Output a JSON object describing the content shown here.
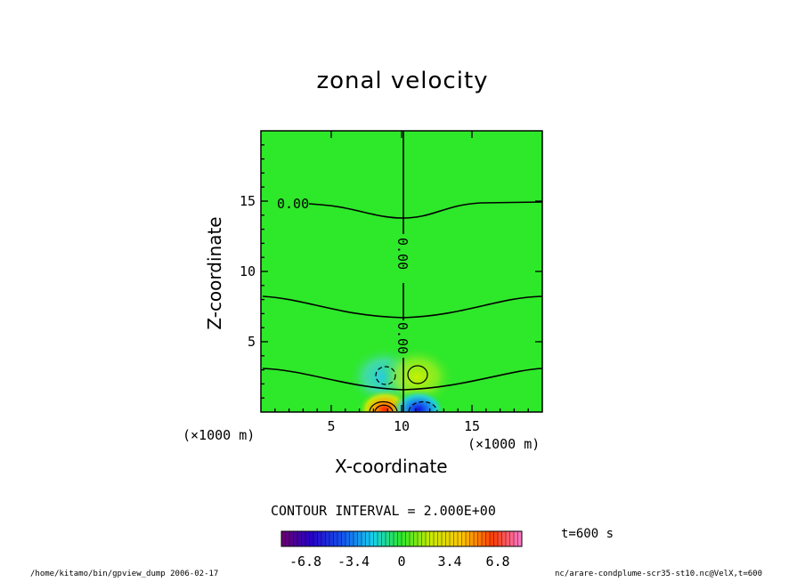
{
  "chart_data": {
    "type": "heatmap",
    "title": "zonal velocity",
    "xlabel": "X-coordinate",
    "ylabel": "Z-coordinate",
    "x_unit": "(×1000 m)",
    "y_unit": "(×1000 m)",
    "xlim": [
      0,
      20
    ],
    "ylim": [
      0,
      20
    ],
    "x_ticks": [
      5,
      10,
      15
    ],
    "y_ticks": [
      5,
      10,
      15
    ],
    "contour_interval_text": "CONTOUR INTERVAL = 2.000E+00",
    "contour_labels": [
      "0.00",
      "0.00",
      "0.00"
    ],
    "time_text": "t=600 s",
    "colorbar": {
      "range": [
        -8.5,
        8.5
      ],
      "tick_values": [
        -6.8,
        -3.4,
        0,
        3.4,
        6.8
      ],
      "tick_labels": [
        "-6.8",
        "-3.4",
        "0",
        "3.4",
        "6.8"
      ]
    },
    "features": [
      {
        "x": 8.8,
        "z": 2.5,
        "sign": "negative",
        "value": -2.5
      },
      {
        "x": 11.1,
        "z": 2.5,
        "sign": "positive",
        "value": 2.5
      },
      {
        "x": 8.8,
        "z": 0.2,
        "sign": "positive",
        "value": 8.0
      },
      {
        "x": 11.2,
        "z": 0.2,
        "sign": "negative",
        "value": -7.0
      }
    ]
  },
  "footer": {
    "left": "/home/kitamo/bin/gpview_dump  2006-02-17",
    "right": "nc/arare-condplume-scr35-st10.nc@VelX,t=600"
  }
}
